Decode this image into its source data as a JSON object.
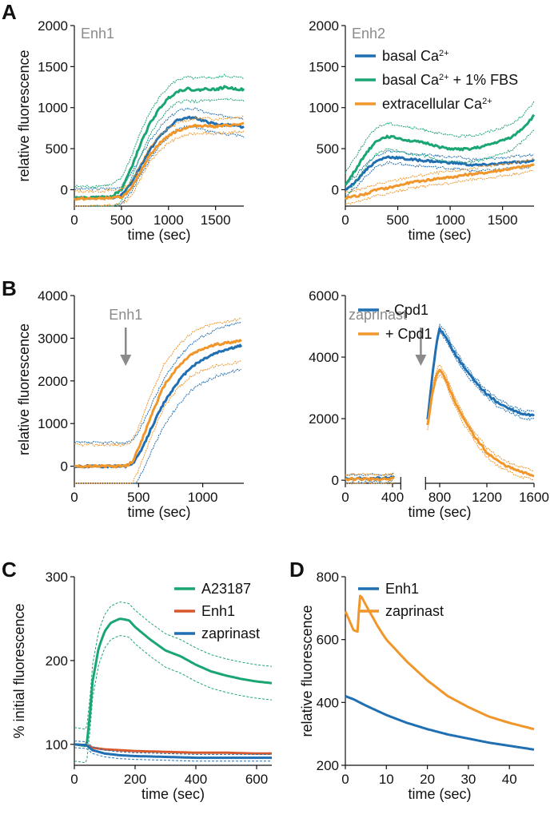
{
  "colors": {
    "blue": "#1f6fb2",
    "green": "#1aa673",
    "orange": "#f0962a",
    "red": "#d9582b",
    "gray": "#8a8a8a"
  },
  "panels": {
    "A": "A",
    "B": "B",
    "C": "C",
    "D": "D"
  },
  "chart_data": [
    {
      "id": "A1",
      "type": "line",
      "panel": "A",
      "annotation": "Enh1",
      "xlabel": "time (sec)",
      "ylabel": "relative fluorescence",
      "xlim": [
        0,
        1800
      ],
      "ylim": [
        -200,
        2000
      ],
      "xticks": [
        "0",
        "500",
        "1000",
        "1500"
      ],
      "xtick_values": [
        0,
        500,
        1000,
        1500
      ],
      "yticks": [
        "0",
        "500",
        "1000",
        "1500",
        "2000"
      ],
      "ytick_values": [
        0,
        500,
        1000,
        1500,
        2000
      ],
      "series": [
        {
          "name": "basal Ca2+",
          "color": "blue",
          "x": [
            0,
            200,
            400,
            500,
            600,
            700,
            800,
            900,
            1000,
            1100,
            1200,
            1300,
            1400,
            1500,
            1600,
            1700,
            1800
          ],
          "values": [
            -100,
            -100,
            -95,
            -70,
            80,
            280,
            480,
            640,
            760,
            850,
            880,
            870,
            830,
            800,
            790,
            780,
            760
          ],
          "spread": 110
        },
        {
          "name": "basal Ca2+ + 1% FBS",
          "color": "green",
          "x": [
            0,
            200,
            400,
            500,
            600,
            700,
            800,
            900,
            1000,
            1100,
            1200,
            1300,
            1400,
            1500,
            1600,
            1700,
            1800
          ],
          "values": [
            -100,
            -100,
            -80,
            0,
            250,
            550,
            800,
            980,
            1120,
            1200,
            1230,
            1210,
            1230,
            1220,
            1250,
            1230,
            1220
          ],
          "spread": 140
        },
        {
          "name": "extracellular Ca2+",
          "color": "orange",
          "x": [
            0,
            200,
            400,
            500,
            600,
            700,
            800,
            900,
            1000,
            1100,
            1200,
            1300,
            1400,
            1500,
            1600,
            1700,
            1800
          ],
          "values": [
            -110,
            -110,
            -100,
            -90,
            0,
            220,
            420,
            560,
            660,
            720,
            760,
            780,
            780,
            770,
            780,
            790,
            800
          ],
          "spread": 90
        }
      ]
    },
    {
      "id": "A2",
      "type": "line",
      "panel": "A",
      "annotation": "Enh2",
      "xlabel": "time (sec)",
      "ylabel": "",
      "xlim": [
        0,
        1800
      ],
      "ylim": [
        -200,
        2000
      ],
      "xticks": [
        "0",
        "500",
        "1000",
        "1500"
      ],
      "xtick_values": [
        0,
        500,
        1000,
        1500
      ],
      "yticks": [
        "0",
        "500",
        "1000",
        "1500",
        "2000"
      ],
      "ytick_values": [
        0,
        500,
        1000,
        1500,
        2000
      ],
      "legend": [
        "basal Ca2+",
        "basal Ca2+ + 1% FBS",
        "extracellular Ca2+"
      ],
      "series": [
        {
          "name": "basal Ca2+",
          "color": "blue",
          "x": [
            0,
            100,
            200,
            300,
            400,
            500,
            600,
            700,
            800,
            900,
            1000,
            1100,
            1200,
            1300,
            1400,
            1500,
            1600,
            1700,
            1800
          ],
          "values": [
            0,
            100,
            250,
            350,
            400,
            390,
            370,
            360,
            350,
            340,
            330,
            320,
            300,
            300,
            310,
            320,
            330,
            340,
            360
          ],
          "spread": 70
        },
        {
          "name": "basal Ca2+ + 1% FBS",
          "color": "green",
          "x": [
            0,
            100,
            200,
            300,
            400,
            500,
            600,
            700,
            800,
            900,
            1000,
            1100,
            1200,
            1300,
            1400,
            1500,
            1600,
            1700,
            1800
          ],
          "values": [
            50,
            250,
            450,
            600,
            650,
            630,
            600,
            580,
            560,
            520,
            500,
            490,
            500,
            520,
            560,
            600,
            650,
            760,
            900
          ],
          "spread": 160
        },
        {
          "name": "extracellular Ca2+",
          "color": "orange",
          "x": [
            0,
            100,
            200,
            300,
            400,
            500,
            600,
            700,
            800,
            900,
            1000,
            1100,
            1200,
            1300,
            1400,
            1500,
            1600,
            1700,
            1800
          ],
          "values": [
            -100,
            -80,
            -50,
            0,
            20,
            50,
            80,
            100,
            120,
            140,
            150,
            170,
            190,
            200,
            220,
            240,
            260,
            280,
            300
          ],
          "spread": 70
        }
      ]
    },
    {
      "id": "B1",
      "type": "line",
      "panel": "B",
      "annotation": "Enh1",
      "xlabel": "time (sec)",
      "ylabel": "relative fluorescence",
      "xlim": [
        0,
        1320
      ],
      "ylim": [
        -400,
        4000
      ],
      "xticks": [
        "0",
        "500",
        "1000"
      ],
      "xtick_values": [
        0,
        500,
        1000
      ],
      "yticks": [
        "0",
        "1000",
        "2000",
        "3000",
        "4000"
      ],
      "ytick_values": [
        0,
        1000,
        2000,
        3000,
        4000
      ],
      "arrow_x": 400,
      "series": [
        {
          "name": "blue",
          "color": "blue",
          "x": [
            0,
            200,
            400,
            450,
            500,
            550,
            600,
            700,
            800,
            900,
            1000,
            1100,
            1200,
            1300
          ],
          "values": [
            0,
            0,
            0,
            50,
            250,
            550,
            900,
            1500,
            1950,
            2300,
            2500,
            2650,
            2750,
            2820
          ],
          "spread": 550
        },
        {
          "name": "orange",
          "color": "orange",
          "x": [
            0,
            200,
            400,
            450,
            500,
            550,
            600,
            700,
            800,
            900,
            1000,
            1100,
            1200,
            1300
          ],
          "values": [
            0,
            0,
            0,
            100,
            400,
            800,
            1200,
            1900,
            2300,
            2600,
            2750,
            2850,
            2900,
            2950
          ],
          "spread": 500
        }
      ]
    },
    {
      "id": "B2",
      "type": "line",
      "panel": "B",
      "annotation": "zaprinast",
      "xlabel": "time (sec)",
      "ylabel": "",
      "xlim": [
        0,
        1600
      ],
      "ylim": [
        -100,
        6000
      ],
      "xticks": [
        "0",
        "400",
        "800",
        "1200",
        "1600"
      ],
      "xtick_values": [
        0,
        400,
        800,
        1200,
        1600
      ],
      "yticks": [
        "0",
        "2000",
        "4000",
        "6000"
      ],
      "ytick_values": [
        0,
        2000,
        4000,
        6000
      ],
      "legend": [
        "- Cpd1",
        "+ Cpd1"
      ],
      "arrow_x": 640,
      "series": [
        {
          "name": "- Cpd1",
          "color": "blue",
          "x": [
            0,
            100,
            200,
            300,
            400,
            700,
            740,
            780,
            800,
            850,
            900,
            1000,
            1100,
            1200,
            1300,
            1400,
            1500,
            1600
          ],
          "values": [
            40,
            50,
            50,
            60,
            80,
            2000,
            3500,
            4600,
            4900,
            4700,
            4300,
            3700,
            3200,
            2800,
            2500,
            2300,
            2150,
            2100
          ],
          "spread": 120
        },
        {
          "name": "+ Cpd1",
          "color": "orange",
          "x": [
            0,
            100,
            200,
            300,
            400,
            700,
            740,
            780,
            800,
            850,
            900,
            1000,
            1100,
            1200,
            1300,
            1400,
            1500,
            1600
          ],
          "values": [
            30,
            40,
            40,
            30,
            40,
            1800,
            2900,
            3500,
            3600,
            3300,
            2800,
            2000,
            1400,
            900,
            600,
            400,
            250,
            150
          ],
          "spread": 150
        }
      ]
    },
    {
      "id": "C",
      "type": "line",
      "panel": "C",
      "xlabel": "time (sec)",
      "ylabel": "% initial fluorescence",
      "xlim": [
        0,
        650
      ],
      "ylim": [
        75,
        300
      ],
      "xticks": [
        "0",
        "200",
        "400",
        "600"
      ],
      "xtick_values": [
        0,
        200,
        400,
        600
      ],
      "yticks": [
        "100",
        "200",
        "300"
      ],
      "ytick_values": [
        100,
        200,
        300
      ],
      "legend": [
        "A23187",
        "Enh1",
        "zaprinast"
      ],
      "series": [
        {
          "name": "A23187",
          "color": "green",
          "x": [
            0,
            40,
            50,
            60,
            80,
            100,
            120,
            150,
            180,
            200,
            250,
            300,
            350,
            400,
            450,
            500,
            550,
            600,
            650
          ],
          "values": [
            100,
            98,
            130,
            175,
            215,
            235,
            245,
            250,
            248,
            240,
            225,
            212,
            205,
            195,
            187,
            182,
            178,
            175,
            173
          ],
          "spread": 20
        },
        {
          "name": "Enh1",
          "color": "red",
          "x": [
            0,
            40,
            60,
            100,
            200,
            300,
            400,
            500,
            600,
            650
          ],
          "values": [
            100,
            99,
            96,
            94,
            92,
            91,
            90,
            90,
            89,
            89
          ],
          "spread": 0
        },
        {
          "name": "zaprinast",
          "color": "blue",
          "x": [
            0,
            40,
            60,
            100,
            150,
            200,
            300,
            400,
            500,
            600,
            650
          ],
          "values": [
            100,
            99,
            93,
            89,
            87,
            86,
            85,
            84,
            84,
            84,
            84
          ],
          "spread": 4
        }
      ]
    },
    {
      "id": "D",
      "type": "line",
      "panel": "D",
      "xlabel": "time (sec)",
      "ylabel": "relative fluorescence",
      "xlim": [
        0,
        46
      ],
      "ylim": [
        200,
        800
      ],
      "xticks": [
        "0",
        "10",
        "20",
        "30",
        "40"
      ],
      "xtick_values": [
        0,
        10,
        20,
        30,
        40
      ],
      "yticks": [
        "200",
        "400",
        "600",
        "800"
      ],
      "ytick_values": [
        200,
        400,
        600,
        800
      ],
      "legend": [
        "Enh1",
        "zaprinast"
      ],
      "series": [
        {
          "name": "Enh1",
          "color": "blue",
          "x": [
            0,
            2,
            5,
            10,
            15,
            20,
            25,
            30,
            35,
            40,
            46
          ],
          "values": [
            420,
            410,
            390,
            360,
            335,
            315,
            298,
            285,
            272,
            262,
            250
          ],
          "spread": 0
        },
        {
          "name": "zaprinast",
          "color": "orange",
          "x": [
            0,
            1,
            2,
            3,
            3.5,
            4,
            5,
            8,
            10,
            15,
            20,
            25,
            30,
            35,
            40,
            46
          ],
          "values": [
            690,
            660,
            630,
            625,
            740,
            735,
            710,
            640,
            600,
            530,
            470,
            420,
            385,
            355,
            335,
            315
          ],
          "spread": 0
        }
      ]
    }
  ]
}
